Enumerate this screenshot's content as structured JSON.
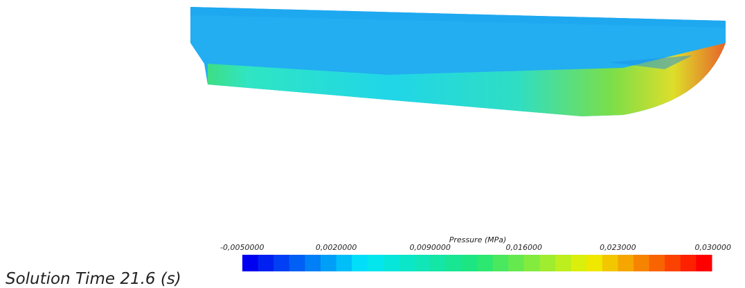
{
  "colorbar": {
    "title": "Pressure (MPa)",
    "ticks": [
      {
        "value": -0.005,
        "label": "-0,0050000"
      },
      {
        "value": 0.002,
        "label": "0,0020000"
      },
      {
        "value": 0.009,
        "label": "0,0090000"
      },
      {
        "value": 0.016,
        "label": "0,016000"
      },
      {
        "value": 0.023,
        "label": "0,023000"
      },
      {
        "value": 0.03,
        "label": "0,030000"
      }
    ]
  },
  "solution_time": "Solution Time 21.6 (s)"
}
